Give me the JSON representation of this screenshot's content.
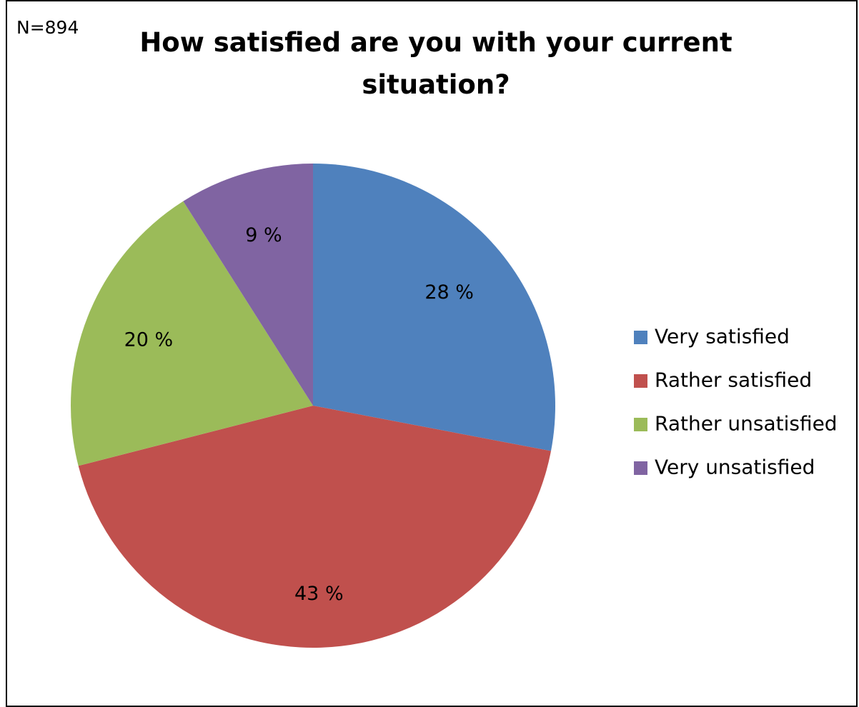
{
  "sample_size_label": "N=894",
  "chart_data": {
    "type": "pie",
    "title_lines": [
      "How satisfied are you with your current",
      "situation?"
    ],
    "slices": [
      {
        "label": "Very satisfied",
        "value": 28,
        "display": "28 %",
        "color": "#4f81bd"
      },
      {
        "label": "Rather satisfied",
        "value": 43,
        "display": "43 %",
        "color": "#c0504d"
      },
      {
        "label": "Rather unsatisfied",
        "value": 20,
        "display": "20 %",
        "color": "#9bbb59"
      },
      {
        "label": "Very unsatisfied",
        "value": 9,
        "display": "9 %",
        "color": "#8064a2"
      }
    ],
    "legend_position": "right",
    "start_angle": "top, clockwise"
  }
}
